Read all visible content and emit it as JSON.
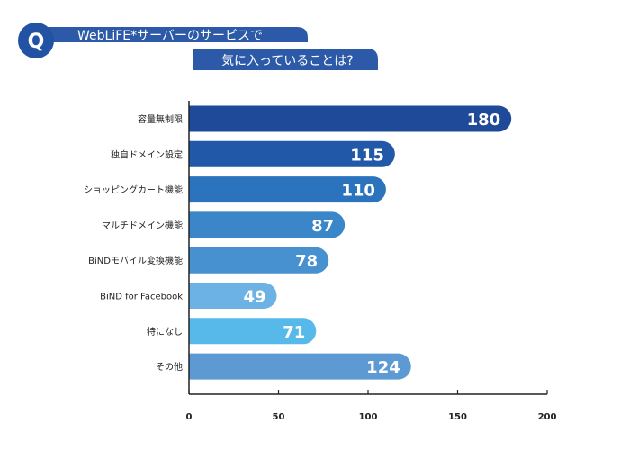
{
  "question": {
    "badge": "Q",
    "line1": "WebLiFE*サーバーのサービスで",
    "line2": "気に入っていることは?"
  },
  "colors": {
    "brand": "#2152a3",
    "header_bg": "#2c5aa8",
    "axis": "#222222",
    "bars": [
      "#1f4999",
      "#2159a8",
      "#2b73bd",
      "#3b86c8",
      "#4891d1",
      "#6cb2e4",
      "#56b9ea",
      "#5d9ad4"
    ]
  },
  "chart_data": {
    "type": "bar",
    "orientation": "horizontal",
    "categories": [
      "容量無制限",
      "独自ドメイン設定",
      "ショッピングカート機能",
      "マルチドメイン機能",
      "BiNDモバイル変換機能",
      "BiND for Facebook",
      "特になし",
      "その他"
    ],
    "values": [
      180,
      115,
      110,
      87,
      78,
      49,
      71,
      124
    ],
    "xlim": [
      0,
      200
    ],
    "xticks": [
      0,
      50,
      100,
      150,
      200
    ],
    "grid": false
  }
}
